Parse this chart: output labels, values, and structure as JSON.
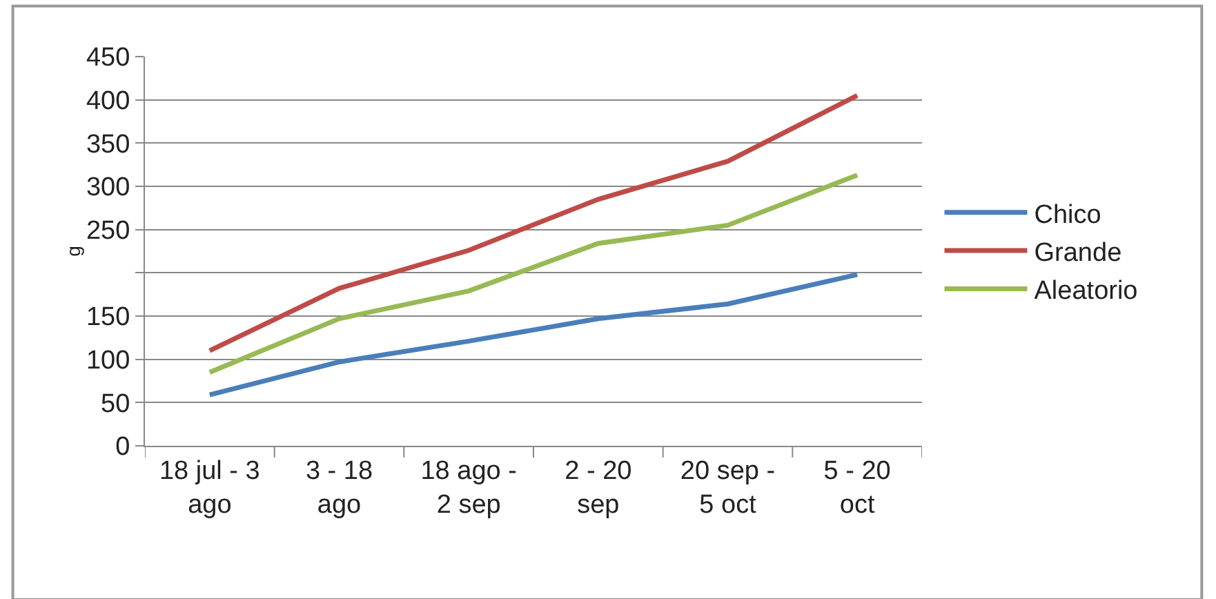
{
  "chart_data": {
    "type": "line",
    "ylabel": "g",
    "categories": [
      "18 jul - 3\nago",
      "3 - 18\nago",
      "18 ago -\n2 sep",
      "2 - 20\nsep",
      "20 sep -\n5 oct",
      "5 - 20\noct"
    ],
    "series": [
      {
        "name": "Chico",
        "color": "#4a7ebb",
        "values": [
          59,
          97,
          121,
          147,
          164,
          198
        ]
      },
      {
        "name": "Grande",
        "color": "#be4b48",
        "values": [
          110,
          182,
          226,
          285,
          329,
          405
        ]
      },
      {
        "name": "Aleatorio",
        "color": "#98b954",
        "values": [
          85,
          147,
          179,
          234,
          255,
          313
        ]
      }
    ],
    "ylim": [
      0,
      450
    ],
    "yticks": [
      0,
      50,
      100,
      150,
      {
        "value": 200,
        "label": null
      },
      250,
      300,
      350,
      400,
      450
    ],
    "grid": "y",
    "legend": "right",
    "marker": "none",
    "line_style": "solid"
  }
}
